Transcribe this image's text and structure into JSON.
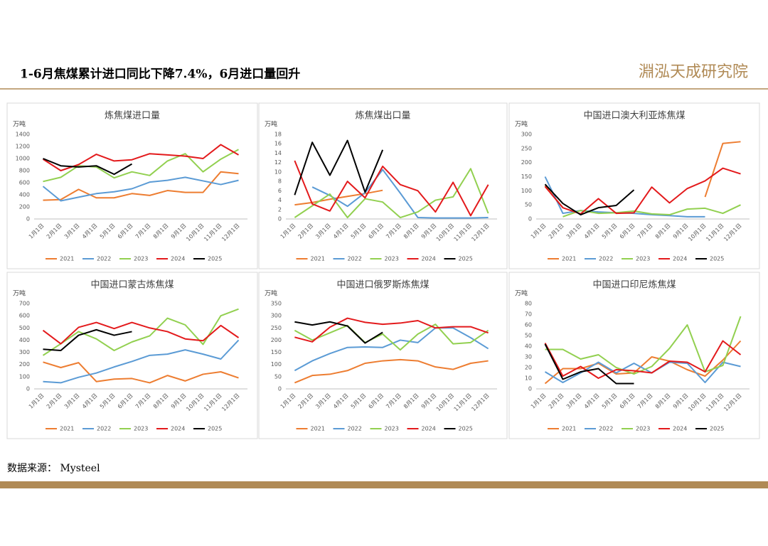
{
  "header": {
    "title": "1-6月焦煤累计进口同比下降7.4%，6月进口量回升",
    "logo": "淵泓天成研究院"
  },
  "source": "数据来源： Mysteel",
  "chart_data": [
    {
      "type": "line",
      "title": "炼焦煤进口量",
      "unit": "万吨",
      "categories": [
        "1月1日",
        "2月1日",
        "3月1日",
        "4月1日",
        "5月1日",
        "6月1日",
        "7月1日",
        "8月1日",
        "9月1日",
        "10月1日",
        "11月1日",
        "12月1日"
      ],
      "ylim": [
        0,
        1400
      ],
      "yticks": [
        0,
        200,
        400,
        600,
        800,
        1000,
        1200,
        1400
      ],
      "series": [
        {
          "name": "2021",
          "color": "#ed7d31",
          "values": [
            310,
            320,
            490,
            350,
            350,
            420,
            390,
            470,
            440,
            440,
            780,
            750
          ]
        },
        {
          "name": "2022",
          "color": "#5b9bd5",
          "values": [
            540,
            300,
            360,
            420,
            450,
            500,
            610,
            640,
            690,
            630,
            570,
            640
          ]
        },
        {
          "name": "2023",
          "color": "#92d050",
          "values": [
            620,
            690,
            880,
            860,
            680,
            780,
            720,
            960,
            1080,
            780,
            990,
            1150
          ]
        },
        {
          "name": "2024",
          "color": "#e31a1c",
          "values": [
            990,
            800,
            900,
            1070,
            960,
            980,
            1080,
            1060,
            1040,
            1000,
            1230,
            1060
          ]
        },
        {
          "name": "2025",
          "color": "#000000",
          "values": [
            1000,
            880,
            860,
            880,
            740,
            910,
            null,
            null,
            null,
            null,
            null,
            null
          ]
        }
      ]
    },
    {
      "type": "line",
      "title": "炼焦煤出口量",
      "unit": "万吨",
      "categories": [
        "1月1日",
        "2月1日",
        "3月1日",
        "4月1日",
        "5月1日",
        "6月1日",
        "7月1日",
        "8月1日",
        "9月1日",
        "10月1日",
        "11月1日",
        "12月1日"
      ],
      "ylim": [
        0,
        18
      ],
      "yticks": [
        0,
        2,
        4,
        6,
        8,
        10,
        12,
        14,
        16,
        18
      ],
      "series": [
        {
          "name": "2021",
          "color": "#ed7d31",
          "values": [
            3,
            3.5,
            4.2,
            4.8,
            5.4,
            6.1,
            null,
            null,
            null,
            null,
            null,
            null
          ]
        },
        {
          "name": "2022",
          "color": "#5b9bd5",
          "values": [
            null,
            6.8,
            5,
            2.7,
            5.6,
            10.5,
            5.5,
            0.3,
            0.2,
            0.2,
            0.2,
            0.3
          ]
        },
        {
          "name": "2023",
          "color": "#92d050",
          "values": [
            0.3,
            2.8,
            5.3,
            0.3,
            4.3,
            3.6,
            0.3,
            1.5,
            4,
            4.7,
            10.7,
            1.2
          ]
        },
        {
          "name": "2024",
          "color": "#e31a1c",
          "values": [
            12.4,
            3.2,
            1.7,
            8,
            4.5,
            11.2,
            7.3,
            6,
            1.5,
            7.8,
            0.7,
            7.3
          ]
        },
        {
          "name": "2025",
          "color": "#000000",
          "values": [
            5.1,
            16.3,
            9.3,
            16.7,
            5.7,
            14.7,
            null,
            null,
            null,
            null,
            null,
            null
          ]
        }
      ]
    },
    {
      "type": "line",
      "title": "中国进口澳大利亚炼焦煤",
      "unit": "万吨",
      "categories": [
        "1月1日",
        "2月1日",
        "3月1日",
        "4月1日",
        "5月1日",
        "6月1日",
        "7月1日",
        "8月1日",
        "9月1日",
        "10月1日",
        "11月1日",
        "12月1日"
      ],
      "ylim": [
        0,
        300
      ],
      "yticks": [
        0,
        50,
        100,
        150,
        200,
        250,
        300
      ],
      "series": [
        {
          "name": "2021",
          "color": "#ed7d31",
          "values": [
            118,
            40,
            null,
            null,
            null,
            null,
            null,
            null,
            null,
            78,
            268,
            274
          ]
        },
        {
          "name": "2022",
          "color": "#5b9bd5",
          "values": [
            150,
            20,
            30,
            25,
            22,
            20,
            15,
            12,
            8,
            8,
            null,
            null
          ]
        },
        {
          "name": "2023",
          "color": "#92d050",
          "values": [
            null,
            8,
            30,
            20,
            22,
            28,
            18,
            15,
            35,
            38,
            20,
            50
          ]
        },
        {
          "name": "2024",
          "color": "#e31a1c",
          "values": [
            115,
            40,
            18,
            72,
            20,
            22,
            113,
            57,
            108,
            135,
            180,
            160
          ]
        },
        {
          "name": "2025",
          "color": "#000000",
          "values": [
            123,
            55,
            15,
            40,
            48,
            103,
            null,
            null,
            null,
            null,
            null,
            null
          ]
        }
      ]
    },
    {
      "type": "line",
      "title": "中国进口蒙古炼焦煤",
      "unit": "万吨",
      "categories": [
        "1月1日",
        "2月1日",
        "3月1日",
        "4月1日",
        "5月1日",
        "6月1日",
        "7月1日",
        "8月1日",
        "9月1日",
        "10月1日",
        "11月1日",
        "12月1日"
      ],
      "ylim": [
        0,
        700
      ],
      "yticks": [
        0,
        100,
        200,
        300,
        400,
        500,
        600,
        700
      ],
      "series": [
        {
          "name": "2021",
          "color": "#ed7d31",
          "values": [
            220,
            175,
            215,
            60,
            80,
            85,
            50,
            110,
            65,
            120,
            140,
            90
          ]
        },
        {
          "name": "2022",
          "color": "#5b9bd5",
          "values": [
            60,
            50,
            95,
            130,
            180,
            225,
            275,
            285,
            320,
            285,
            245,
            400
          ]
        },
        {
          "name": "2023",
          "color": "#92d050",
          "values": [
            275,
            370,
            470,
            410,
            315,
            385,
            435,
            580,
            525,
            365,
            600,
            655
          ]
        },
        {
          "name": "2024",
          "color": "#e31a1c",
          "values": [
            480,
            370,
            505,
            545,
            495,
            545,
            500,
            470,
            410,
            395,
            520,
            420
          ]
        },
        {
          "name": "2025",
          "color": "#000000",
          "values": [
            325,
            315,
            440,
            485,
            440,
            470,
            null,
            null,
            null,
            null,
            null,
            null
          ]
        }
      ]
    },
    {
      "type": "line",
      "title": "中国进口俄罗斯炼焦煤",
      "unit": "万吨",
      "categories": [
        "1月1日",
        "2月1日",
        "3月1日",
        "4月1日",
        "5月1日",
        "6月1日",
        "7月1日",
        "8月1日",
        "9月1日",
        "10月1日",
        "11月1日",
        "12月1日"
      ],
      "ylim": [
        0,
        350
      ],
      "yticks": [
        0,
        50,
        100,
        150,
        200,
        250,
        300,
        350
      ],
      "series": [
        {
          "name": "2021",
          "color": "#ed7d31",
          "values": [
            25,
            55,
            60,
            75,
            105,
            115,
            120,
            115,
            90,
            80,
            105,
            115
          ]
        },
        {
          "name": "2022",
          "color": "#5b9bd5",
          "values": [
            75,
            115,
            145,
            170,
            172,
            170,
            200,
            190,
            250,
            250,
            210,
            165
          ]
        },
        {
          "name": "2023",
          "color": "#92d050",
          "values": [
            240,
            200,
            230,
            260,
            190,
            225,
            160,
            225,
            265,
            185,
            190,
            240
          ]
        },
        {
          "name": "2024",
          "color": "#e31a1c",
          "values": [
            212,
            193,
            253,
            290,
            273,
            265,
            270,
            280,
            250,
            255,
            255,
            230
          ]
        },
        {
          "name": "2025",
          "color": "#000000",
          "values": [
            275,
            262,
            275,
            258,
            188,
            232,
            null,
            null,
            null,
            null,
            null,
            null
          ]
        }
      ]
    },
    {
      "type": "line",
      "title": "中国进口印尼炼焦煤",
      "unit": "万吨",
      "categories": [
        "1月1日",
        "2月1日",
        "3月1日",
        "4月1日",
        "5月1日",
        "6月1日",
        "7月1日",
        "8月1日",
        "9月1日",
        "10月1日",
        "11月1日",
        "12月1日"
      ],
      "ylim": [
        0,
        80
      ],
      "yticks": [
        0,
        10,
        20,
        30,
        40,
        50,
        60,
        70,
        80
      ],
      "series": [
        {
          "name": "2021",
          "color": "#ed7d31",
          "values": [
            5,
            19,
            19,
            24,
            14,
            15,
            30,
            26,
            18,
            12,
            27,
            45
          ]
        },
        {
          "name": "2022",
          "color": "#5b9bd5",
          "values": [
            16,
            6,
            15,
            25,
            15,
            24,
            15,
            25,
            24,
            6,
            25,
            21
          ]
        },
        {
          "name": "2023",
          "color": "#92d050",
          "values": [
            37,
            37,
            28,
            32,
            20,
            14,
            21,
            38,
            60,
            16,
            22,
            68
          ]
        },
        {
          "name": "2024",
          "color": "#e31a1c",
          "values": [
            43,
            12,
            21,
            10,
            18,
            17,
            15,
            26,
            25,
            16,
            45,
            32
          ]
        },
        {
          "name": "2025",
          "color": "#000000",
          "values": [
            42,
            9,
            16,
            19,
            5,
            5,
            null,
            null,
            null,
            null,
            null,
            null
          ]
        }
      ]
    }
  ]
}
